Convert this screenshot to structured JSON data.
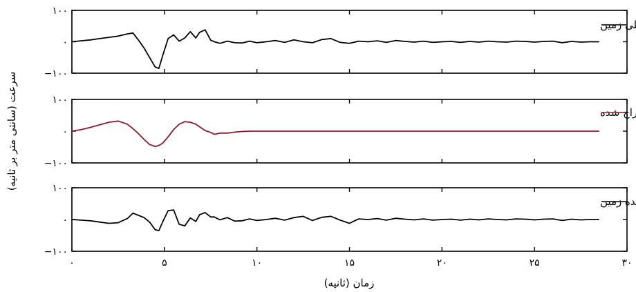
{
  "chart_data": {
    "type": "line",
    "xlabel": "زمان (ثانیه)",
    "ylabel": "سرعت (سانتی متر بر ثانیه)",
    "xlim": [
      0,
      30
    ],
    "xticks": [
      0,
      5,
      10,
      15,
      20,
      25,
      30
    ],
    "xtick_labels": [
      "۰",
      "۵",
      "۱۰",
      "۱۵",
      "۲۰",
      "۲۵",
      "۳۰"
    ],
    "ylim": [
      -100,
      100
    ],
    "yticks": [
      -100,
      0,
      100
    ],
    "ytick_labels": [
      "−۱۰۰",
      "۰",
      "۱۰۰"
    ],
    "grid": false,
    "legend_position": "top-right",
    "panels": [
      {
        "series_name": "حرکت اصلی زمین",
        "color": "#000000",
        "x": [
          0,
          0.5,
          1,
          1.5,
          2,
          2.5,
          3,
          3.3,
          3.6,
          3.9,
          4.2,
          4.5,
          4.7,
          4.9,
          5.2,
          5.5,
          5.8,
          6.1,
          6.4,
          6.7,
          6.9,
          7.2,
          7.5,
          7.7,
          8,
          8.4,
          8.8,
          9.2,
          9.6,
          10,
          10.5,
          11,
          11.5,
          12,
          12.5,
          13,
          13.5,
          14,
          14.5,
          15,
          15.5,
          16,
          16.5,
          17,
          17.5,
          18,
          18.5,
          19,
          19.5,
          20,
          20.5,
          21,
          21.5,
          22,
          22.5,
          23,
          23.5,
          24,
          24.5,
          25,
          25.5,
          26,
          26.5,
          27,
          27.5,
          28,
          28.5
        ],
        "y": [
          0,
          3,
          6,
          10,
          14,
          18,
          25,
          28,
          5,
          -20,
          -50,
          -80,
          -85,
          -45,
          10,
          22,
          2,
          12,
          32,
          12,
          30,
          38,
          5,
          0,
          -5,
          2,
          -3,
          -4,
          2,
          -3,
          0,
          4,
          -2,
          6,
          0,
          -3,
          7,
          10,
          -2,
          -5,
          2,
          0,
          3,
          -2,
          4,
          1,
          -1,
          2,
          -2,
          0,
          1,
          -2,
          1,
          -1,
          2,
          0,
          -1,
          2,
          1,
          -1,
          1,
          2,
          -3,
          1,
          -1,
          0,
          0
        ]
      },
      {
        "series_name": "ضربان استخراج شده",
        "color": "#8b1a2b",
        "x": [
          0,
          0.5,
          1,
          1.5,
          2,
          2.5,
          3,
          3.3,
          3.6,
          3.9,
          4.2,
          4.5,
          4.7,
          4.9,
          5.2,
          5.5,
          5.8,
          6.1,
          6.4,
          6.7,
          6.9,
          7.2,
          7.5,
          7.7,
          8,
          8.4,
          8.8,
          9.2,
          9.6,
          10,
          10.5,
          11,
          11.5,
          12,
          12.5,
          13,
          13.5,
          14,
          14.5,
          15,
          15.5,
          16,
          16.5,
          17,
          17.5,
          18,
          18.5,
          19,
          19.5,
          20,
          20.5,
          21,
          21.5,
          22,
          22.5,
          23,
          23.5,
          24,
          24.5,
          25,
          25.5,
          26,
          26.5,
          27,
          27.5,
          28,
          28.5
        ],
        "y": [
          0,
          5,
          12,
          20,
          28,
          32,
          22,
          8,
          -8,
          -26,
          -42,
          -48,
          -45,
          -38,
          -18,
          5,
          22,
          30,
          28,
          22,
          14,
          2,
          -4,
          -10,
          -6,
          -6,
          -3,
          -1,
          0,
          0,
          0,
          0,
          0,
          0,
          0,
          0,
          0,
          0,
          0,
          0,
          0,
          0,
          0,
          0,
          0,
          0,
          0,
          0,
          0,
          0,
          0,
          0,
          0,
          0,
          0,
          0,
          0,
          0,
          0,
          0,
          0,
          0,
          0,
          0,
          0,
          0,
          0
        ]
      },
      {
        "series_name": "حرکت باقیمانده زمین",
        "color": "#000000",
        "x": [
          0,
          0.5,
          1,
          1.5,
          2,
          2.5,
          3,
          3.3,
          3.6,
          3.9,
          4.2,
          4.5,
          4.7,
          4.9,
          5.2,
          5.5,
          5.8,
          6.1,
          6.4,
          6.7,
          6.9,
          7.2,
          7.5,
          7.7,
          8,
          8.4,
          8.8,
          9.2,
          9.6,
          10,
          10.5,
          11,
          11.5,
          12,
          12.5,
          13,
          13.5,
          14,
          14.5,
          15,
          15.5,
          16,
          16.5,
          17,
          17.5,
          18,
          18.5,
          19,
          19.5,
          20,
          20.5,
          21,
          21.5,
          22,
          22.5,
          23,
          23.5,
          24,
          24.5,
          25,
          25.5,
          26,
          26.5,
          27,
          27.5,
          28,
          28.5
        ],
        "y": [
          0,
          -2,
          -4,
          -8,
          -12,
          -10,
          3,
          20,
          13,
          6,
          -8,
          -32,
          -35,
          -8,
          28,
          30,
          -15,
          -20,
          5,
          -6,
          15,
          22,
          8,
          8,
          -1,
          6,
          -5,
          -4,
          2,
          -3,
          0,
          4,
          -2,
          6,
          10,
          -3,
          7,
          10,
          -2,
          -12,
          2,
          0,
          3,
          -2,
          4,
          1,
          -1,
          2,
          -2,
          0,
          1,
          -2,
          1,
          -1,
          2,
          0,
          -1,
          2,
          1,
          -1,
          1,
          2,
          -3,
          1,
          -1,
          0,
          0
        ]
      }
    ]
  }
}
